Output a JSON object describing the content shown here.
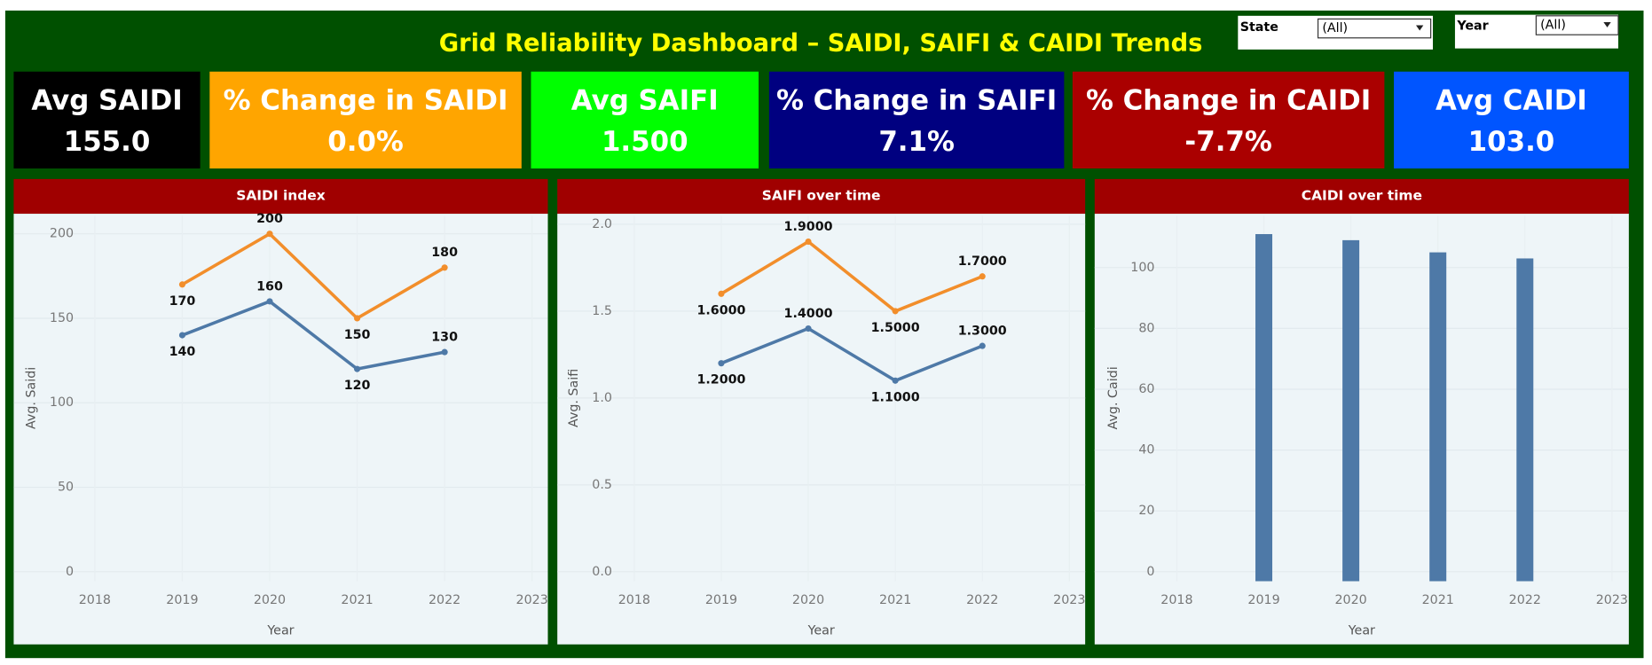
{
  "title": "Grid Reliability Dashboard – SAIDI, SAIFI & CAIDI Trends",
  "filters": [
    {
      "label": "State",
      "value": "(All)"
    },
    {
      "label": "Year",
      "value": "(All)"
    }
  ],
  "kpis": [
    {
      "label": "Avg SAIDI",
      "value": "155.0",
      "color": "#000000"
    },
    {
      "label": "% Change in SAIDI",
      "value": "0.0%",
      "color": "#ffa500"
    },
    {
      "label": "Avg SAIFI",
      "value": "1.500",
      "color": "#00ff00"
    },
    {
      "label": "% Change in SAIFI",
      "value": "7.1%",
      "color": "#000080"
    },
    {
      "label": "% Change in CAIDI",
      "value": "-7.7%",
      "color": "#aa0000"
    },
    {
      "label": "Avg CAIDI",
      "value": "103.0",
      "color": "#0055ff"
    }
  ],
  "chart_data": [
    {
      "type": "line",
      "title": "SAIDI index",
      "x_label": "Year",
      "y_label": "Avg. Saidi",
      "x": [
        2019,
        2020,
        2021,
        2022
      ],
      "series": [
        {
          "color": "#f28e2b",
          "values": [
            170,
            200,
            150,
            180
          ]
        },
        {
          "color": "#4e79a7",
          "values": [
            140,
            160,
            120,
            130
          ]
        }
      ],
      "xlim": [
        2018,
        2023
      ],
      "xticks": [
        2018,
        2019,
        2020,
        2021,
        2022,
        2023
      ],
      "ylim": [
        0,
        210
      ],
      "yticks": [
        0,
        50,
        100,
        150,
        200
      ],
      "grid": true
    },
    {
      "type": "line",
      "title": "SAIFI over time",
      "x_label": "Year",
      "y_label": "Avg. Saifi",
      "x": [
        2019,
        2020,
        2021,
        2022
      ],
      "series": [
        {
          "color": "#f28e2b",
          "values": [
            1.6,
            1.9,
            1.5,
            1.7
          ],
          "value_labels": [
            "1.6000",
            "1.9000",
            "1.5000",
            "1.7000"
          ]
        },
        {
          "color": "#4e79a7",
          "values": [
            1.2,
            1.4,
            1.1,
            1.3
          ],
          "value_labels": [
            "1.2000",
            "1.4000",
            "1.1000",
            "1.3000"
          ]
        }
      ],
      "xlim": [
        2018,
        2023
      ],
      "xticks": [
        2018,
        2019,
        2020,
        2021,
        2022,
        2023
      ],
      "ylim": [
        0,
        2.0
      ],
      "yticks": [
        {
          "value": 0,
          "label": "0.0"
        },
        {
          "value": 0.5,
          "label": "0.5"
        },
        {
          "value": 1,
          "label": "1.0"
        },
        {
          "value": 1.5,
          "label": "1.5"
        },
        {
          "value": 2,
          "label": "2.0"
        }
      ],
      "grid": true
    },
    {
      "type": "bar",
      "title": "CAIDI over time",
      "x_label": "Year",
      "y_label": "Avg. Caidi",
      "x": [
        2019,
        2020,
        2021,
        2022
      ],
      "values": [
        111,
        109,
        105,
        103
      ],
      "color": "#4e79a7",
      "xlim": [
        2018,
        2023
      ],
      "xticks": [
        2018,
        2019,
        2020,
        2021,
        2022,
        2023
      ],
      "ylim": [
        0,
        117
      ],
      "yticks": [
        0,
        20,
        40,
        60,
        80,
        100
      ],
      "grid": true
    }
  ]
}
